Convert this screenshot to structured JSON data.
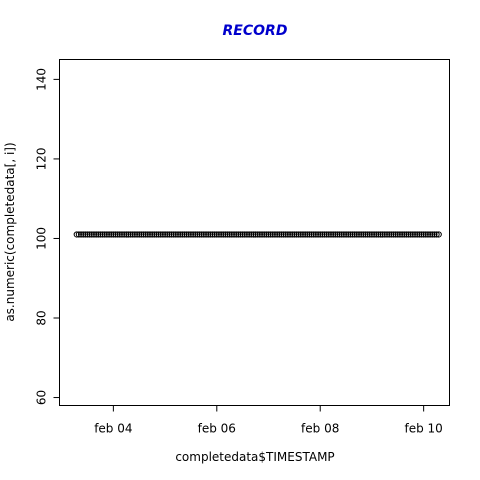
{
  "chart_data": {
    "type": "scatter",
    "title": "RECORD",
    "xlabel": "completedata$TIMESTAMP",
    "ylabel": "as.numeric(completedata[, i])",
    "xlim": [
      "2020-02-02T23:00",
      "2020-02-10T12:00"
    ],
    "ylim": [
      58,
      145
    ],
    "x_ticks": [
      {
        "value": "2020-02-04",
        "label": "feb 04"
      },
      {
        "value": "2020-02-06",
        "label": "feb 06"
      },
      {
        "value": "2020-02-08",
        "label": "feb 08"
      },
      {
        "value": "2020-02-10",
        "label": "feb 10"
      }
    ],
    "y_ticks": [
      60,
      80,
      100,
      120,
      140
    ],
    "grid": false,
    "series": [
      {
        "x_start": "2020-02-03T07:00",
        "x_end": "2020-02-10T07:00",
        "y": 101,
        "step_hours": 1
      }
    ],
    "colors": {
      "title": "#0000cc",
      "points": "#000000",
      "axis": "#000000"
    }
  }
}
